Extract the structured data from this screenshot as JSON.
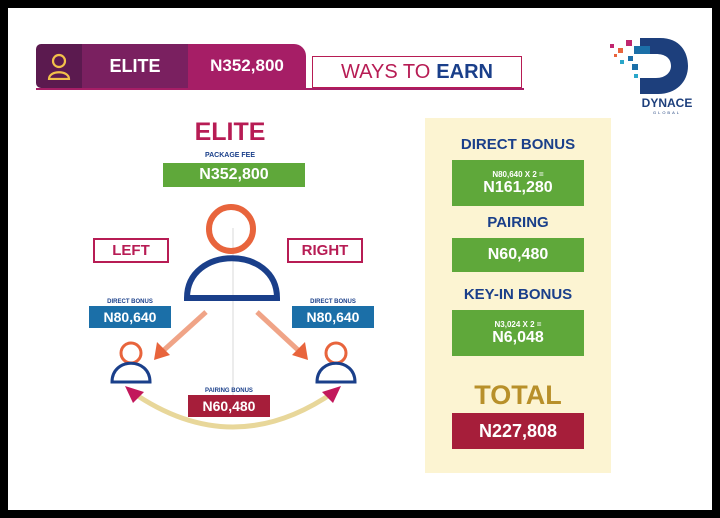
{
  "header": {
    "user_icon": "user-icon",
    "package_name": "ELITE",
    "package_price": "N352,800",
    "ways_text": "WAYS TO",
    "earn_text": "EARN"
  },
  "logo": {
    "name": "DYNACE",
    "sub": "GLOBAL"
  },
  "diagram": {
    "title": "ELITE",
    "package_fee_label": "PACKAGE FEE",
    "package_fee": "N352,800",
    "left_label": "LEFT",
    "right_label": "RIGHT",
    "left_direct_label": "DIRECT BONUS",
    "left_direct_value": "N80,640",
    "right_direct_label": "DIRECT BONUS",
    "right_direct_value": "N80,640",
    "pairing_label": "PAIRING BONUS",
    "pairing_value": "N60,480"
  },
  "summary": {
    "direct_title": "DIRECT BONUS",
    "direct_calc": "N80,640 X 2 =",
    "direct_value": "N161,280",
    "pairing_title": "PAIRING",
    "pairing_value": "N60,480",
    "keyin_title": "KEY-IN BONUS",
    "keyin_calc": "N3,024 X 2 =",
    "keyin_value": "N6,048",
    "total_title": "TOTAL",
    "total_value": "N227,808"
  },
  "colors": {
    "magenta": "#a61e66",
    "navy": "#1a3f8a",
    "green": "#5fa83a",
    "crimson": "#a61e3a",
    "panel": "#fcf4d2",
    "gold": "#b8902a",
    "orange": "#e8643c"
  }
}
